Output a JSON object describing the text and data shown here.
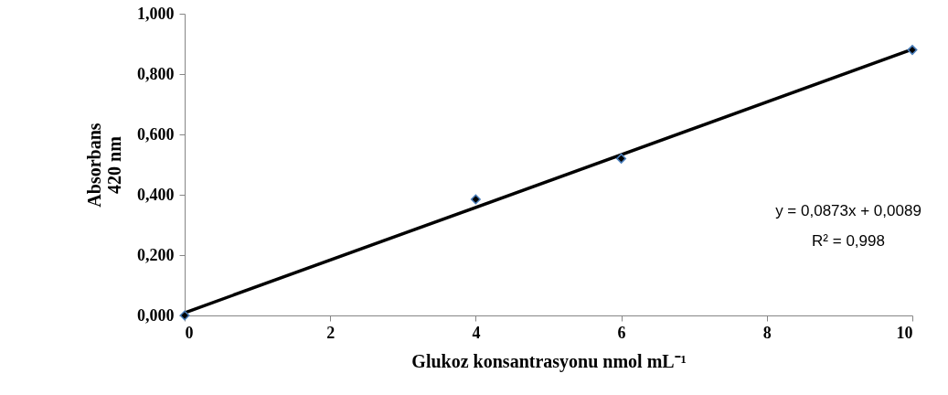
{
  "chart_data": {
    "type": "scatter",
    "xlabel": "Glukoz konsantrasyonu nmol mL⁻¹",
    "ylabel": "Absorbans\n420 nm",
    "x": [
      0,
      4,
      6,
      10
    ],
    "series": [
      {
        "color": "#000000",
        "values": [
          0,
          0.385,
          0.52,
          0.88
        ]
      },
      {
        "type": "line",
        "marker": "none",
        "color": "#000000",
        "x": [
          0,
          10
        ],
        "values": [
          0.009,
          0.882
        ]
      }
    ],
    "xlim": [
      0,
      10
    ],
    "xticks": [
      0,
      2,
      4,
      6,
      8,
      10
    ],
    "ylim": [
      0,
      1
    ],
    "yticks": [
      {
        "value": 0,
        "label": "0,000"
      },
      {
        "value": 0.2,
        "label": "0,200"
      },
      {
        "value": 0.4,
        "label": "0,400"
      },
      {
        "value": 0.6,
        "label": "0,600"
      },
      {
        "value": 0.8,
        "label": "0,800"
      },
      {
        "value": 1,
        "label": "1,000"
      }
    ],
    "annotations": [
      "y = 0,0873x + 0,0089",
      "R² = 0,998"
    ],
    "grid": false,
    "marker": "diamond"
  }
}
